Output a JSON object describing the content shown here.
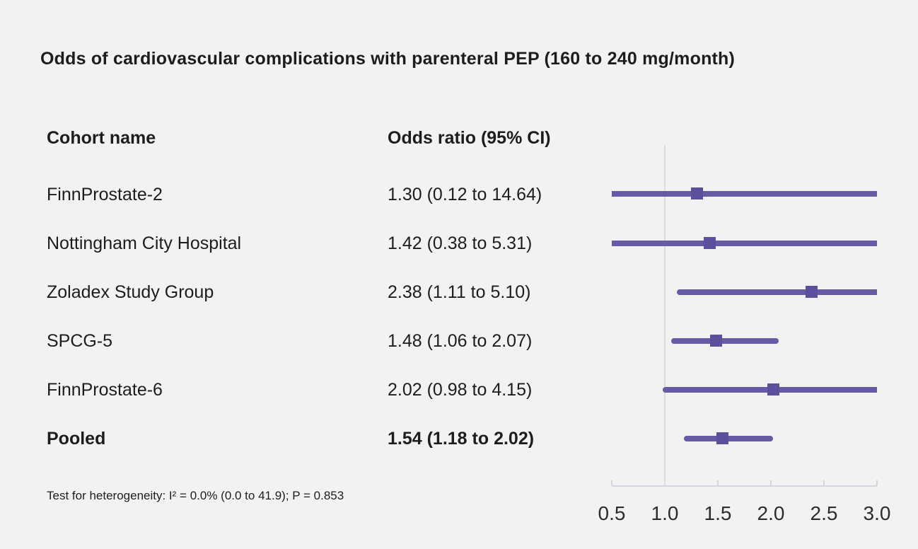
{
  "title": "Odds of cardiovascular complications with parenteral PEP (160 to 240 mg/month)",
  "table": {
    "col1_header": "Cohort name",
    "col2_header": "Odds ratio (95% CI)",
    "rows": [
      {
        "name": "FinnProstate-2",
        "or_text": "1.30 (0.12 to 14.64)",
        "pooled": false
      },
      {
        "name": "Nottingham City Hospital",
        "or_text": "1.42 (0.38 to 5.31)",
        "pooled": false
      },
      {
        "name": "Zoladex Study Group",
        "or_text": "2.38 (1.11 to 5.10)",
        "pooled": false
      },
      {
        "name": "SPCG-5",
        "or_text": "1.48 (1.06 to 2.07)",
        "pooled": false
      },
      {
        "name": "FinnProstate-6",
        "or_text": "2.02 (0.98 to 4.15)",
        "pooled": false
      },
      {
        "name": "Pooled",
        "or_text": "1.54 (1.18 to 2.02)",
        "pooled": true
      }
    ]
  },
  "footnote": "Test for heterogeneity: I² = 0.0% (0.0 to 41.9); P = 0.853",
  "chart_data": {
    "type": "forest",
    "title": "Odds of cardiovascular complications with parenteral PEP (160 to 240 mg/month)",
    "xlim": [
      0.5,
      3.0
    ],
    "x_ticks": [
      0.5,
      1.0,
      1.5,
      2.0,
      2.5,
      3.0
    ],
    "x_tick_labels": [
      "0.5",
      "1.0",
      "1.5",
      "2.0",
      "2.5",
      "3.0"
    ],
    "reference_line_x": 1.0,
    "grid": false,
    "series": [
      {
        "name": "FinnProstate-2",
        "estimate": 1.3,
        "ci_low": 0.12,
        "ci_high": 14.64,
        "pooled": false
      },
      {
        "name": "Nottingham City Hospital",
        "estimate": 1.42,
        "ci_low": 0.38,
        "ci_high": 5.31,
        "pooled": false
      },
      {
        "name": "Zoladex Study Group",
        "estimate": 2.38,
        "ci_low": 1.11,
        "ci_high": 5.1,
        "pooled": false
      },
      {
        "name": "SPCG-5",
        "estimate": 1.48,
        "ci_low": 1.06,
        "ci_high": 2.07,
        "pooled": false
      },
      {
        "name": "FinnProstate-6",
        "estimate": 2.02,
        "ci_low": 0.98,
        "ci_high": 4.15,
        "pooled": false
      },
      {
        "name": "Pooled",
        "estimate": 1.54,
        "ci_low": 1.18,
        "ci_high": 2.02,
        "pooled": true
      }
    ]
  },
  "colors": {
    "background": "#f2f2f2",
    "ci_line": "#685aa5",
    "marker": "#5d4f9e",
    "reference_line": "#d9dce3",
    "axis": "#d3d6dd",
    "text": "#1d1d1b"
  }
}
